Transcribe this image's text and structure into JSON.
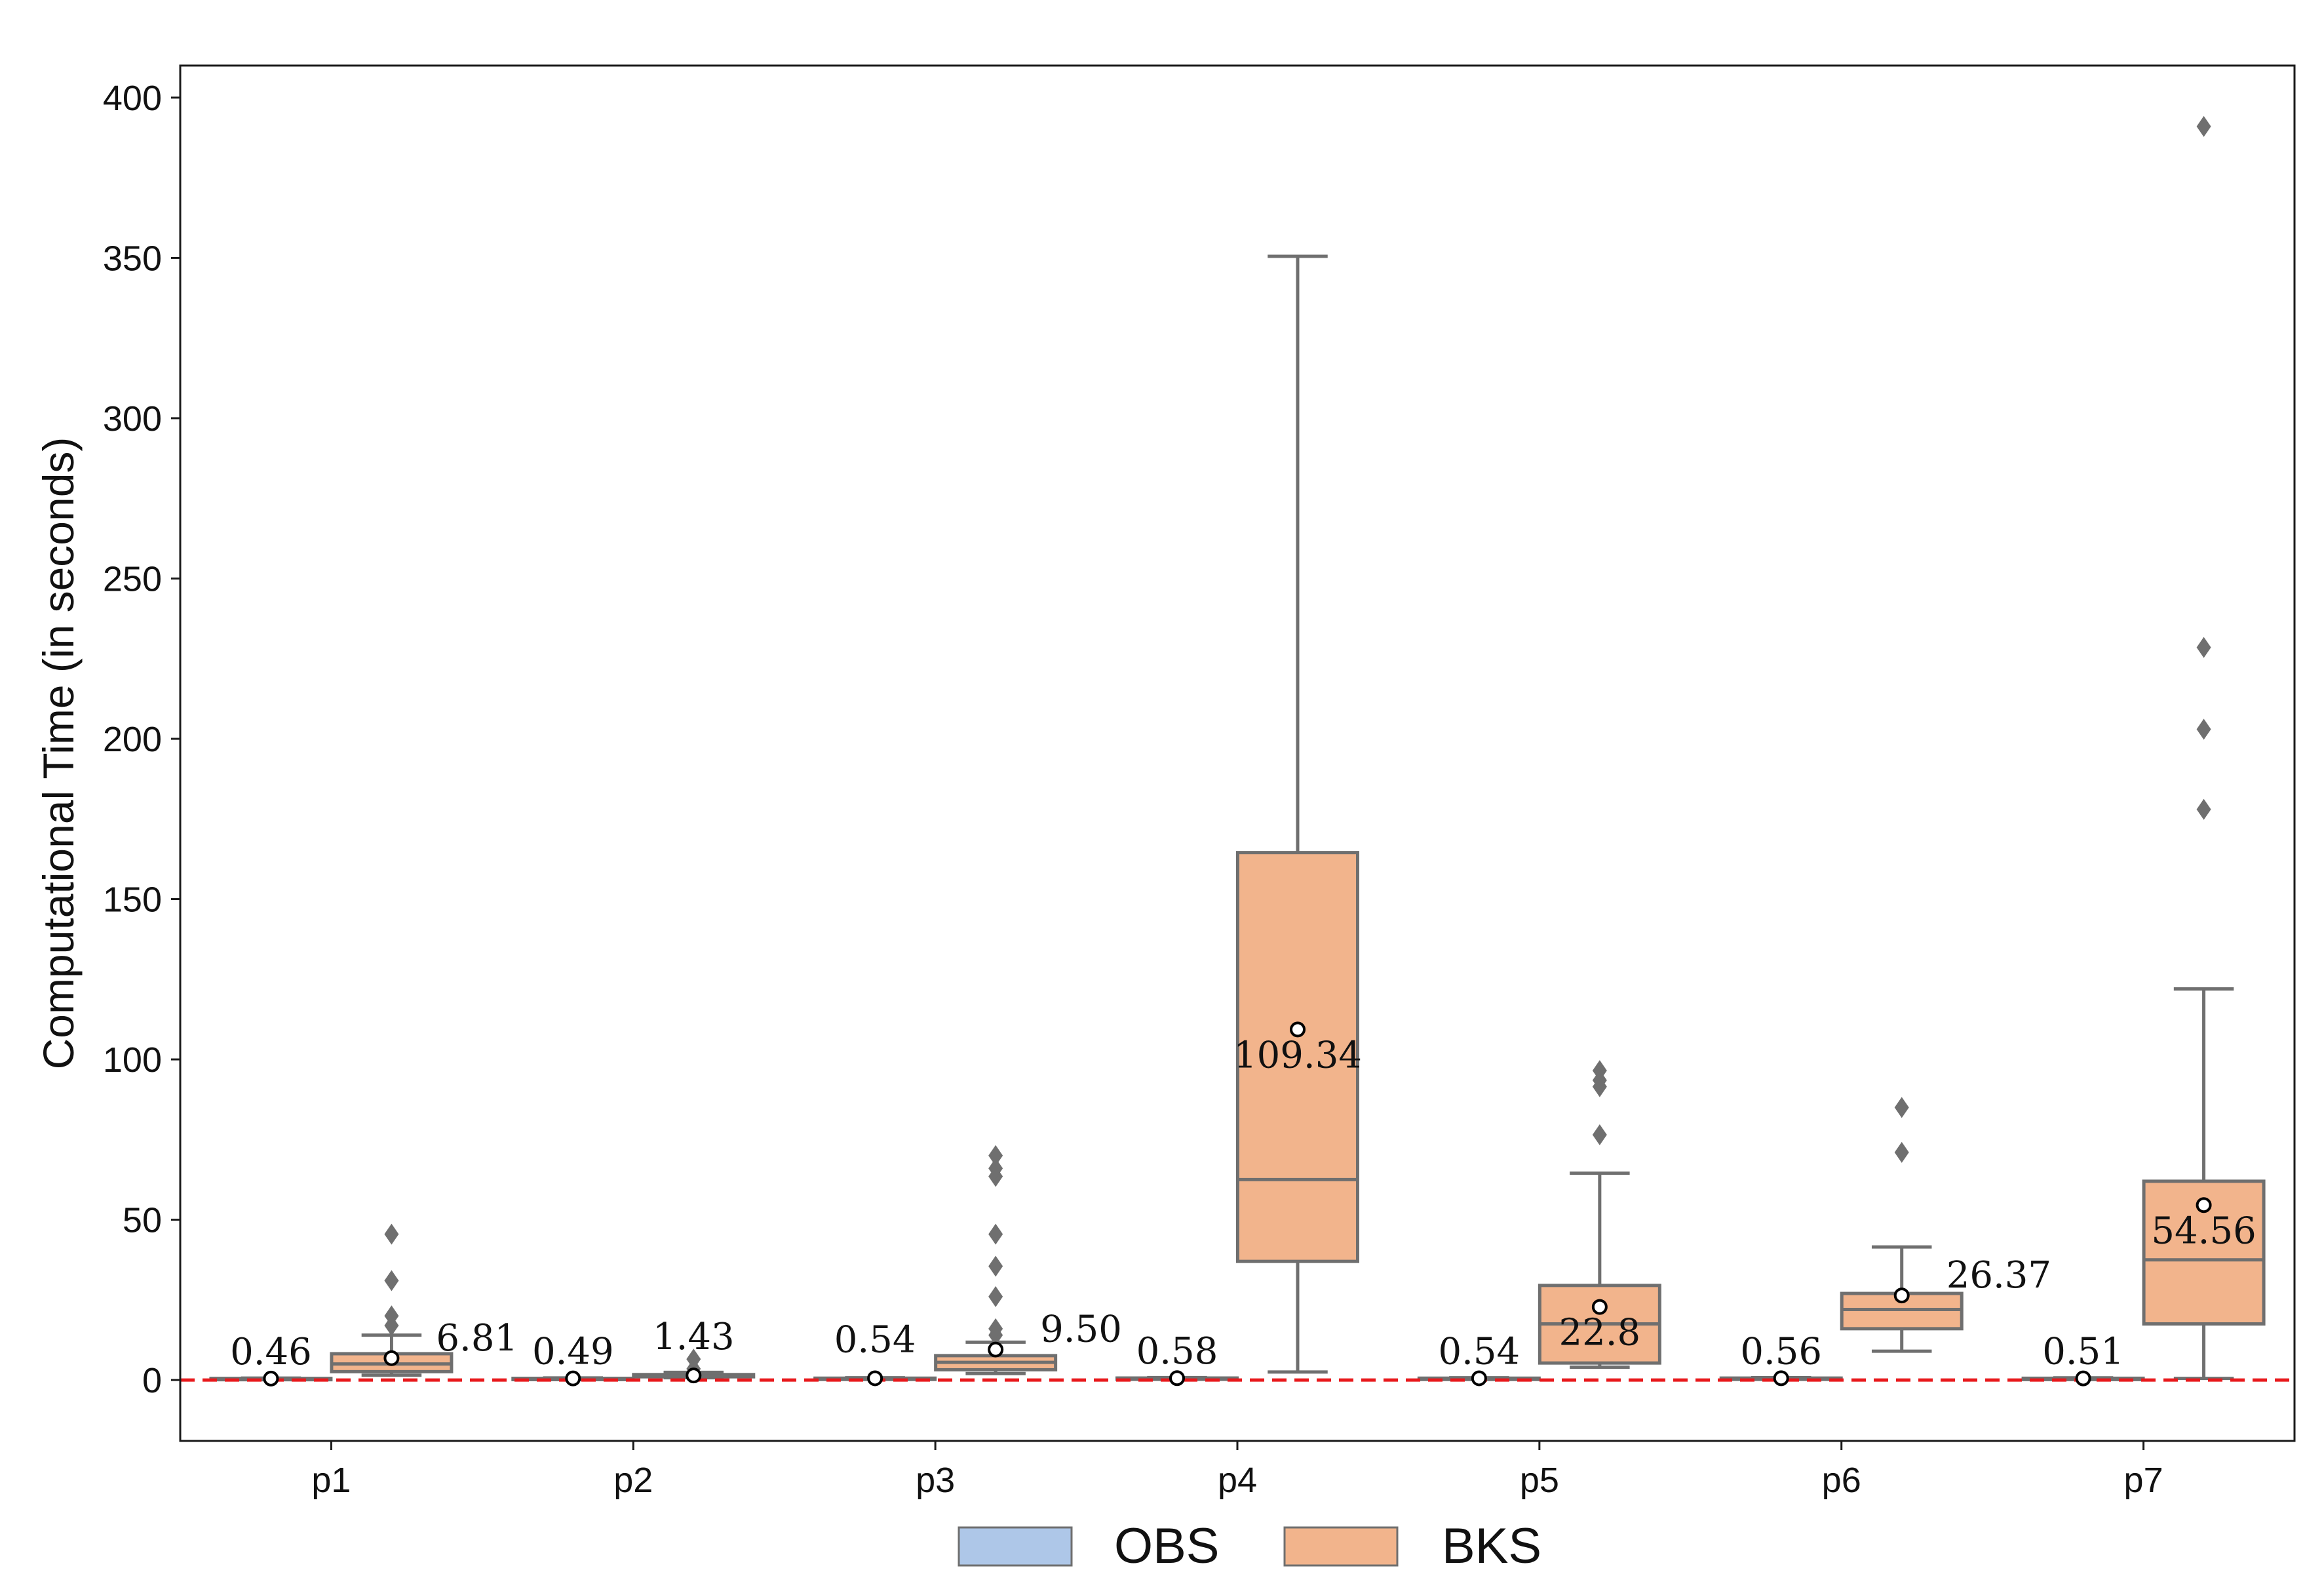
{
  "chart_data": {
    "type": "boxplot",
    "title": "",
    "xlabel": "",
    "ylabel": "Computational Time (in seconds)",
    "ylim": [
      -19,
      410
    ],
    "yticks": [
      0,
      50,
      100,
      150,
      200,
      250,
      300,
      350,
      400
    ],
    "categories": [
      "p1",
      "p2",
      "p3",
      "p4",
      "p5",
      "p6",
      "p7"
    ],
    "reference_line": {
      "y": 0,
      "color": "#e8191c",
      "style": "dashed"
    },
    "series": [
      {
        "name": "OBS",
        "color": "#aec7e8",
        "boxes": [
          {
            "category": "p1",
            "min": 0.3,
            "q1": 0.42,
            "median": 0.46,
            "q3": 0.5,
            "max": 0.6,
            "mean": 0.46,
            "outliers": []
          },
          {
            "category": "p2",
            "min": 0.3,
            "q1": 0.45,
            "median": 0.49,
            "q3": 0.53,
            "max": 0.65,
            "mean": 0.49,
            "outliers": []
          },
          {
            "category": "p3",
            "min": 0.35,
            "q1": 0.5,
            "median": 0.54,
            "q3": 0.58,
            "max": 0.7,
            "mean": 0.54,
            "outliers": []
          },
          {
            "category": "p4",
            "min": 0.4,
            "q1": 0.54,
            "median": 0.58,
            "q3": 0.62,
            "max": 0.75,
            "mean": 0.58,
            "outliers": []
          },
          {
            "category": "p5",
            "min": 0.35,
            "q1": 0.5,
            "median": 0.54,
            "q3": 0.58,
            "max": 0.7,
            "mean": 0.54,
            "outliers": []
          },
          {
            "category": "p6",
            "min": 0.4,
            "q1": 0.52,
            "median": 0.56,
            "q3": 0.6,
            "max": 0.72,
            "mean": 0.56,
            "outliers": []
          },
          {
            "category": "p7",
            "min": 0.35,
            "q1": 0.47,
            "median": 0.51,
            "q3": 0.55,
            "max": 0.68,
            "mean": 0.51,
            "outliers": []
          }
        ]
      },
      {
        "name": "BKS",
        "color": "#f2b48c",
        "boxes": [
          {
            "category": "p1",
            "min": 1.5,
            "q1": 2.6,
            "median": 5.0,
            "q3": 8.2,
            "max": 14.0,
            "mean": 6.81,
            "outliers": [
              17,
              20,
              31,
              45.5
            ]
          },
          {
            "category": "p2",
            "min": 0.7,
            "q1": 1.0,
            "median": 1.3,
            "q3": 1.7,
            "max": 2.4,
            "mean": 1.43,
            "outliers": [
              3.5,
              6.5
            ]
          },
          {
            "category": "p3",
            "min": 2.0,
            "q1": 3.2,
            "median": 5.5,
            "q3": 7.6,
            "max": 11.8,
            "mean": 9.5,
            "outliers": [
              14,
              16,
              26,
              35.5,
              45.5,
              63.5,
              66,
              70
            ]
          },
          {
            "category": "p4",
            "min": 2.5,
            "q1": 37,
            "median": 62.5,
            "q3": 164.5,
            "max": 350.5,
            "mean": 109.34,
            "outliers": []
          },
          {
            "category": "p5",
            "min": 4.0,
            "q1": 5.3,
            "median": 17.5,
            "q3": 29.5,
            "max": 64.5,
            "mean": 22.8,
            "outliers": [
              76.5,
              91.5,
              93.5,
              96.5
            ]
          },
          {
            "category": "p6",
            "min": 9.0,
            "q1": 16,
            "median": 22,
            "q3": 27,
            "max": 41.5,
            "mean": 26.37,
            "outliers": [
              71,
              85
            ]
          },
          {
            "category": "p7",
            "min": 0.5,
            "q1": 17.5,
            "median": 37.5,
            "q3": 62,
            "max": 122,
            "mean": 54.56,
            "outliers": [
              178,
              203,
              228.5,
              391
            ]
          }
        ]
      }
    ],
    "annotations": [
      {
        "category": "p1",
        "series": "OBS",
        "text": "0.46",
        "anchor": "above"
      },
      {
        "category": "p1",
        "series": "BKS",
        "text": "6.81",
        "anchor": "right"
      },
      {
        "category": "p2",
        "series": "OBS",
        "text": "0.49",
        "anchor": "above"
      },
      {
        "category": "p2",
        "series": "BKS",
        "text": "1.43",
        "anchor": "above-high"
      },
      {
        "category": "p3",
        "series": "OBS",
        "text": "0.54",
        "anchor": "above-high"
      },
      {
        "category": "p3",
        "series": "BKS",
        "text": "9.50",
        "anchor": "right"
      },
      {
        "category": "p4",
        "series": "OBS",
        "text": "0.58",
        "anchor": "above"
      },
      {
        "category": "p4",
        "series": "BKS",
        "text": "109.34",
        "anchor": "below"
      },
      {
        "category": "p5",
        "series": "OBS",
        "text": "0.54",
        "anchor": "above"
      },
      {
        "category": "p5",
        "series": "BKS",
        "text": "22.8",
        "anchor": "below"
      },
      {
        "category": "p6",
        "series": "OBS",
        "text": "0.56",
        "anchor": "above"
      },
      {
        "category": "p6",
        "series": "BKS",
        "text": "26.37",
        "anchor": "right"
      },
      {
        "category": "p7",
        "series": "OBS",
        "text": "0.51",
        "anchor": "above"
      },
      {
        "category": "p7",
        "series": "BKS",
        "text": "54.56",
        "anchor": "below"
      }
    ],
    "legend": {
      "position": "bottom-center",
      "entries": [
        "OBS",
        "BKS"
      ]
    },
    "grid": false
  }
}
